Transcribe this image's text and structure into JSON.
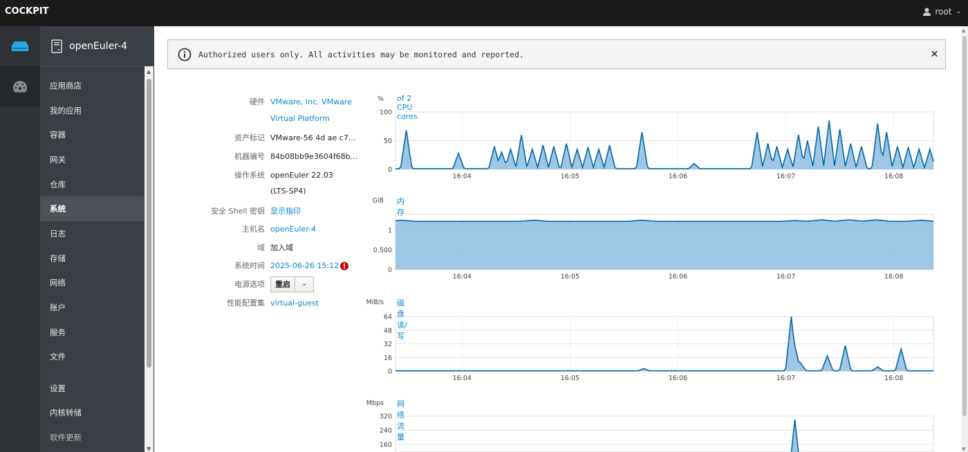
{
  "topbar": {
    "brand": "COCKPIT",
    "user": "root"
  },
  "host": {
    "name": "openEuler-4"
  },
  "sidebar": {
    "active": "系统",
    "items": [
      {
        "label": "应用商店"
      },
      {
        "label": "我的应用"
      },
      {
        "label": "容器"
      },
      {
        "label": "网关"
      },
      {
        "label": "仓库"
      },
      {
        "label": "系统"
      },
      {
        "label": "日志"
      },
      {
        "label": "存储"
      },
      {
        "label": "网络"
      },
      {
        "label": "账户"
      },
      {
        "label": "服务"
      },
      {
        "label": "文件"
      },
      {
        "label": "设置"
      },
      {
        "label": "内核转储"
      },
      {
        "label": "软件更新"
      }
    ]
  },
  "alert": {
    "message": "Authorized users only. All activities may be monitored and reported.",
    "close": "✕"
  },
  "system_info": [
    {
      "key": "硬件",
      "value": "VMware, Inc. VMware Virtual Platform",
      "link": true
    },
    {
      "key": "资产标记",
      "value": "VMware-56 4d ae c7...",
      "link": false
    },
    {
      "key": "机器编号",
      "value": "84b08bb9e3604f68b...",
      "link": false
    },
    {
      "key": "操作系统",
      "value": "openEuler 22.03 (LTS-SP4)",
      "link": false
    },
    {
      "key": "安全 Shell 密钥",
      "value": "显示指印",
      "link": true
    },
    {
      "key": "主机名",
      "value": "openEuler-4",
      "link": true
    },
    {
      "key": "域",
      "value": "加入域",
      "link": false
    },
    {
      "key": "系统时间",
      "value": "2025-06-26 15:12",
      "link": true,
      "warning": true
    },
    {
      "key": "电源选项",
      "value": "重启",
      "dropdown": "⌄"
    },
    {
      "key": "性能配置集",
      "value": "virtual-guest",
      "link": true
    }
  ],
  "colors": {
    "accent": "#0088ce",
    "line": "#0066a6",
    "fill": "#93c0e2",
    "warning": "#cc0000"
  },
  "chart_data": [
    {
      "type": "area",
      "title": "of 2 CPU cores",
      "ylabel": "%",
      "ylim": [
        0,
        100
      ],
      "yticks": [
        "100",
        "50",
        "0"
      ],
      "xticks": [
        "16:04",
        "16:05",
        "16:06",
        "16:07",
        "16:08"
      ],
      "xlim": [
        "16:03:23",
        "16:08:22"
      ],
      "baseline": 1,
      "grid": true,
      "peaks": [
        [
          "16:03:29",
          68
        ],
        [
          "16:03:58",
          28
        ],
        [
          "16:04:18",
          40
        ],
        [
          "16:04:22",
          30
        ],
        [
          "16:04:27",
          35
        ],
        [
          "16:04:33",
          60
        ],
        [
          "16:04:39",
          35
        ],
        [
          "16:04:45",
          42
        ],
        [
          "16:04:51",
          40
        ],
        [
          "16:04:58",
          45
        ],
        [
          "16:05:04",
          35
        ],
        [
          "16:05:10",
          38
        ],
        [
          "16:05:16",
          35
        ],
        [
          "16:05:22",
          42
        ],
        [
          "16:05:40",
          65
        ],
        [
          "16:06:09",
          10
        ],
        [
          "16:06:44",
          65
        ],
        [
          "16:06:50",
          45
        ],
        [
          "16:06:55",
          40
        ],
        [
          "16:07:01",
          35
        ],
        [
          "16:07:07",
          60
        ],
        [
          "16:07:12",
          50
        ],
        [
          "16:07:18",
          75
        ],
        [
          "16:07:24",
          85
        ],
        [
          "16:07:30",
          70
        ],
        [
          "16:07:36",
          45
        ],
        [
          "16:07:42",
          40
        ],
        [
          "16:07:51",
          80
        ],
        [
          "16:07:56",
          65
        ],
        [
          "16:08:02",
          40
        ],
        [
          "16:08:08",
          38
        ],
        [
          "16:08:14",
          35
        ],
        [
          "16:08:20",
          35
        ]
      ]
    },
    {
      "type": "area",
      "title": "内存",
      "ylabel": "GiB",
      "ylim": [
        0,
        1.4
      ],
      "yticks": [
        "1",
        "0.500",
        "0"
      ],
      "xticks": [
        "16:04",
        "16:05",
        "16:06",
        "16:07",
        "16:08"
      ],
      "xlim": [
        "16:03:23",
        "16:08:22"
      ],
      "baseline": 1.22,
      "grid": true,
      "peaks": [
        [
          "16:03:26",
          1.25
        ],
        [
          "16:04:40",
          1.25
        ],
        [
          "16:05:40",
          1.25
        ],
        [
          "16:07:05",
          1.24
        ],
        [
          "16:07:20",
          1.26
        ],
        [
          "16:07:35",
          1.26
        ],
        [
          "16:07:50",
          1.26
        ],
        [
          "16:08:15",
          1.25
        ]
      ]
    },
    {
      "type": "area",
      "title": "磁盘 读/写",
      "ylabel": "MiB/s",
      "ylim": [
        0,
        64
      ],
      "yticks": [
        "64",
        "48",
        "32",
        "16",
        "0"
      ],
      "xticks": [
        "16:04",
        "16:05",
        "16:06",
        "16:07",
        "16:08"
      ],
      "xlim": [
        "16:03:23",
        "16:08:22"
      ],
      "baseline": 0.3,
      "grid": true,
      "peaks": [
        [
          "16:05:41",
          3
        ],
        [
          "16:07:03",
          64
        ],
        [
          "16:07:05",
          30
        ],
        [
          "16:07:08",
          10
        ],
        [
          "16:07:23",
          18
        ],
        [
          "16:07:33",
          30
        ],
        [
          "16:07:51",
          5
        ],
        [
          "16:08:04",
          26
        ]
      ]
    },
    {
      "type": "area",
      "title": "网络流量",
      "ylabel": "Mbps",
      "ylim": [
        0,
        320
      ],
      "yticks": [
        "320",
        "240",
        "160"
      ],
      "xticks": [],
      "xlim": [
        "16:03:23",
        "16:08:22"
      ],
      "baseline": 0.5,
      "grid": true,
      "peaks": [
        [
          "16:07:05",
          300
        ]
      ]
    }
  ]
}
